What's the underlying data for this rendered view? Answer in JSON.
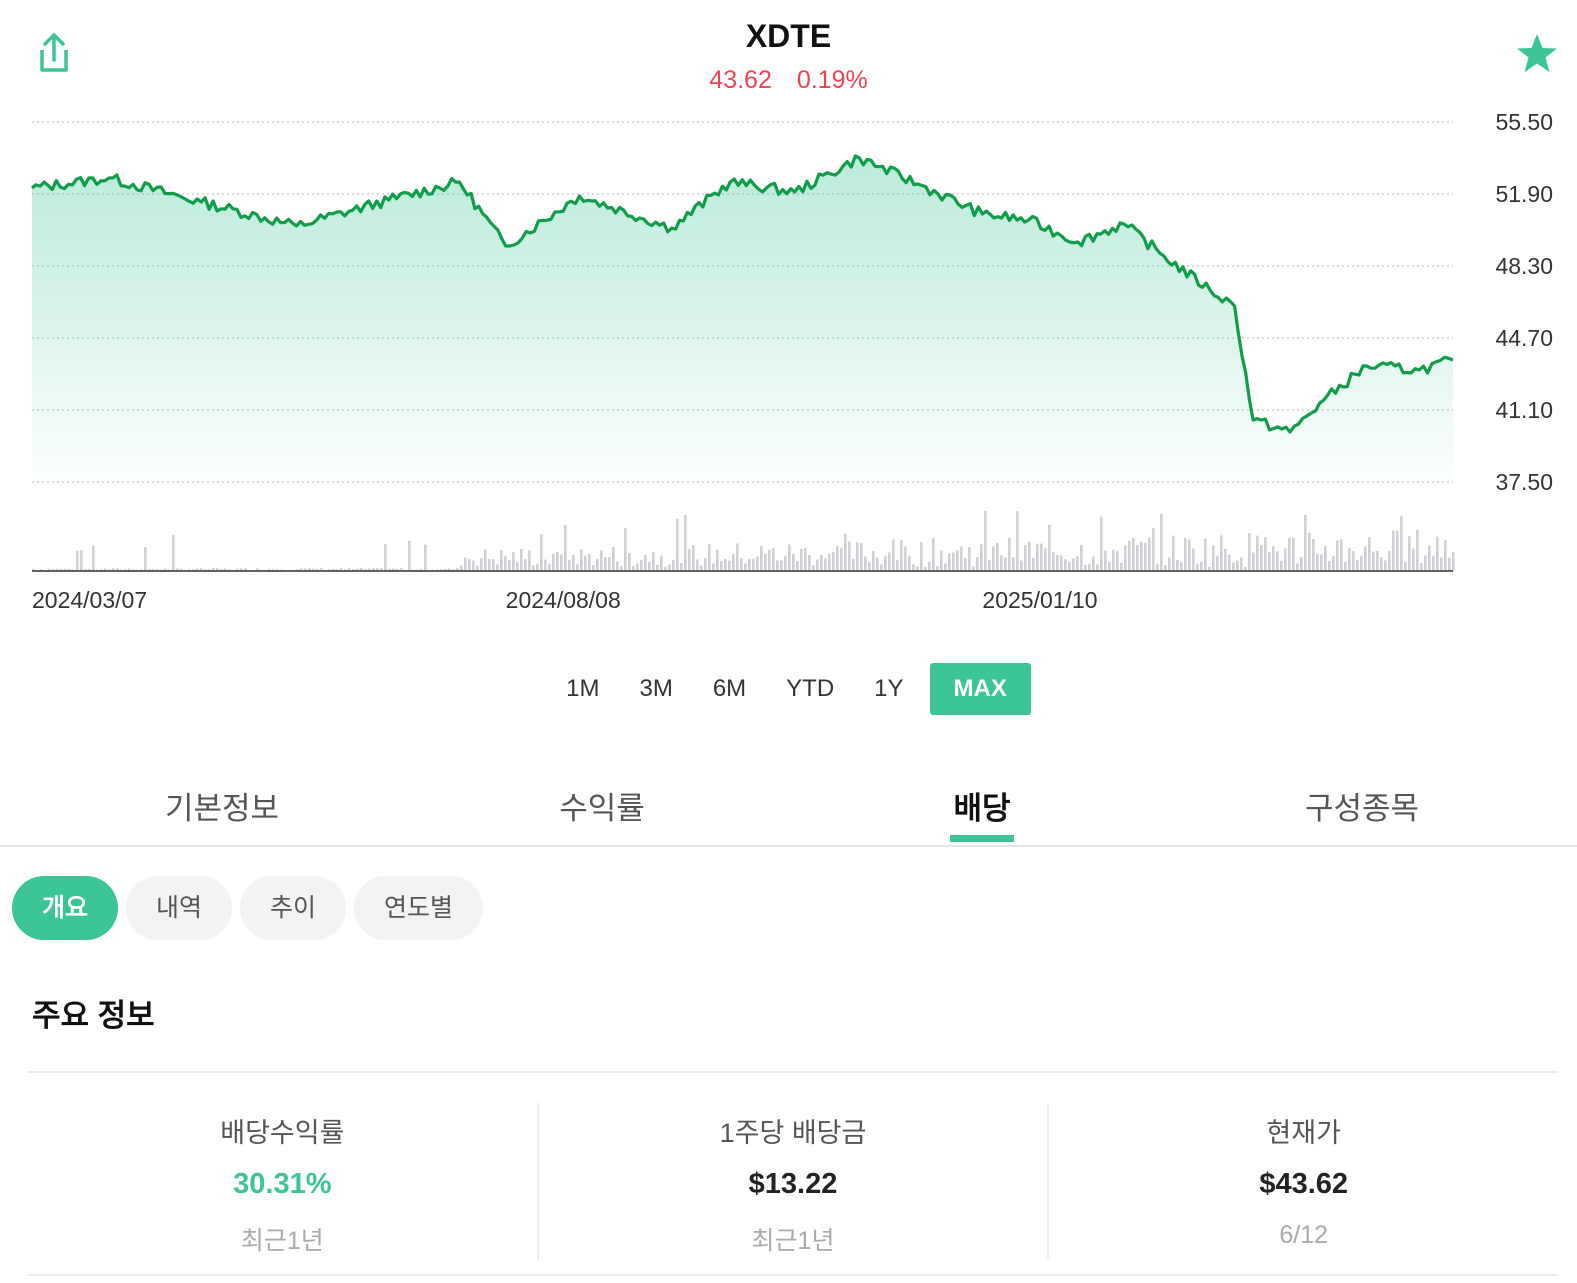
{
  "header": {
    "ticker": "XDTE",
    "price": "43.62",
    "change": "0.19%",
    "change_color": "#f0454f",
    "share_icon": "share-icon",
    "favorite_icon": "star-icon",
    "accent": "#3cc594"
  },
  "chart_data": {
    "type": "area",
    "ylim": [
      37.5,
      55.5
    ],
    "yticks": [
      "55.50",
      "51.90",
      "48.30",
      "44.70",
      "41.10",
      "37.50"
    ],
    "xticks": [
      "2024/03/07",
      "2024/08/08",
      "2025/01/10"
    ],
    "x": [
      "2024/03/07",
      "2024/04/01",
      "2024/05/01",
      "2024/06/01",
      "2024/07/01",
      "2024/07/24",
      "2024/08/08",
      "2024/09/01",
      "2024/10/01",
      "2024/10/20",
      "2024/11/10",
      "2024/12/01",
      "2024/12/20",
      "2025/01/10",
      "2025/01/25",
      "2025/02/10",
      "2025/02/25",
      "2025/03/10",
      "2025/03/25",
      "2025/04/02",
      "2025/04/08",
      "2025/04/20",
      "2025/05/01",
      "2025/05/15",
      "2025/06/01",
      "2025/06/12"
    ],
    "series": [
      {
        "values": [
          52.2,
          52.7,
          51.5,
          50.3,
          51.6,
          52.5,
          49.3,
          51.8,
          50.2,
          52.5,
          52.0,
          53.7,
          52.4,
          50.9,
          50.6,
          49.5,
          50.4,
          48.8,
          47.1,
          46.3,
          40.6,
          40.0,
          41.6,
          43.3,
          43.1,
          43.6
        ]
      }
    ],
    "volume_series_shown": true,
    "grid": true,
    "y_axis_position": "right"
  },
  "ranges": [
    "1M",
    "3M",
    "6M",
    "YTD",
    "1Y",
    "MAX"
  ],
  "active_range": "MAX",
  "tabs": [
    "기본정보",
    "수익률",
    "배당",
    "구성종목"
  ],
  "active_tab": "배당",
  "subtabs": [
    "개요",
    "내역",
    "추이",
    "연도별"
  ],
  "active_subtab": "개요",
  "section_title": "주요 정보",
  "stats": [
    {
      "label": "배당수익률",
      "value": "30.31%",
      "sub": "최근1년"
    },
    {
      "label": "1주당 배당금",
      "value": "$13.22",
      "sub": "최근1년"
    },
    {
      "label": "현재가",
      "value": "$43.62",
      "sub": "6/12"
    }
  ]
}
